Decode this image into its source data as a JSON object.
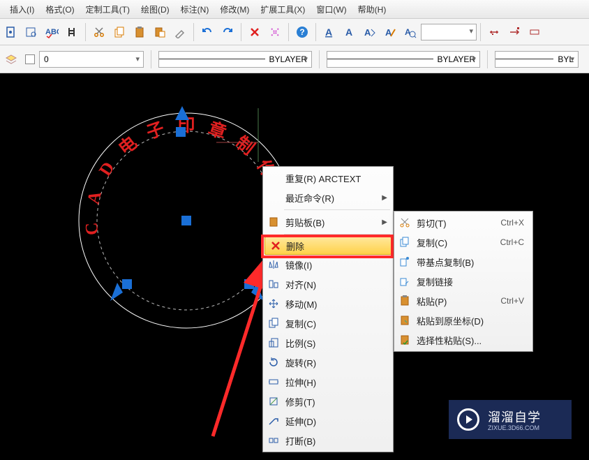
{
  "menu": {
    "items": [
      "插入(I)",
      "格式(O)",
      "定制工具(T)",
      "绘图(D)",
      "标注(N)",
      "修改(M)",
      "扩展工具(X)",
      "窗口(W)",
      "帮助(H)"
    ]
  },
  "toolbar2": {
    "layer_label": "0",
    "bylayer1": "BYLAYER",
    "bylayer2": "BYLAYER",
    "bylayer3": "BYL"
  },
  "arc_text": "CAD电子印章制作方法",
  "ctx1": {
    "items": [
      {
        "label": "重复(R) ARCTEXT",
        "key": "repeat",
        "icon": ""
      },
      {
        "label": "最近命令(R)",
        "key": "recent",
        "icon": "",
        "arrow": true
      },
      {
        "divider": true
      },
      {
        "label": "剪贴板(B)",
        "key": "clipboard",
        "icon": "📋",
        "arrow": true
      },
      {
        "divider": true
      },
      {
        "label": "删除",
        "key": "delete",
        "icon": "x",
        "highlight": true
      },
      {
        "label": "镜像(I)",
        "key": "mirror",
        "icon": "mirror"
      },
      {
        "label": "对齐(N)",
        "key": "align",
        "icon": "align"
      },
      {
        "label": "移动(M)",
        "key": "move",
        "icon": "move"
      },
      {
        "label": "复制(C)",
        "key": "copy",
        "icon": "copy"
      },
      {
        "label": "比例(S)",
        "key": "scale",
        "icon": "scale"
      },
      {
        "label": "旋转(R)",
        "key": "rotate",
        "icon": "rotate"
      },
      {
        "label": "拉伸(H)",
        "key": "stretch",
        "icon": "stretch"
      },
      {
        "label": "修剪(T)",
        "key": "trim",
        "icon": "trim"
      },
      {
        "label": "延伸(D)",
        "key": "extend",
        "icon": "extend"
      },
      {
        "label": "打断(B)",
        "key": "break",
        "icon": "break"
      }
    ]
  },
  "ctx2": {
    "items": [
      {
        "label": "剪切(T)",
        "key": "cut",
        "icon": "cut",
        "shortcut": "Ctrl+X"
      },
      {
        "label": "复制(C)",
        "key": "copy",
        "icon": "copy2",
        "shortcut": "Ctrl+C"
      },
      {
        "label": "带基点复制(B)",
        "key": "copybase",
        "icon": "copybase"
      },
      {
        "label": "复制链接",
        "key": "copylink",
        "icon": "copylink"
      },
      {
        "label": "粘贴(P)",
        "key": "paste",
        "icon": "paste",
        "shortcut": "Ctrl+V"
      },
      {
        "label": "粘贴到原坐标(D)",
        "key": "pasteorig",
        "icon": "pasteorig"
      },
      {
        "label": "选择性粘贴(S)...",
        "key": "pastespec",
        "icon": "pastespec"
      }
    ]
  },
  "watermark": {
    "title": "溜溜自学",
    "sub": "ZIXUE.3D66.COM"
  },
  "colors": {
    "canvas_bg": "#000000",
    "arc_text": "#e02020",
    "grip": "#1a6fd6",
    "sel_dash": "#cccccc",
    "hl_border": "#ff2a2a",
    "wm_bg": "#1b2a55"
  }
}
